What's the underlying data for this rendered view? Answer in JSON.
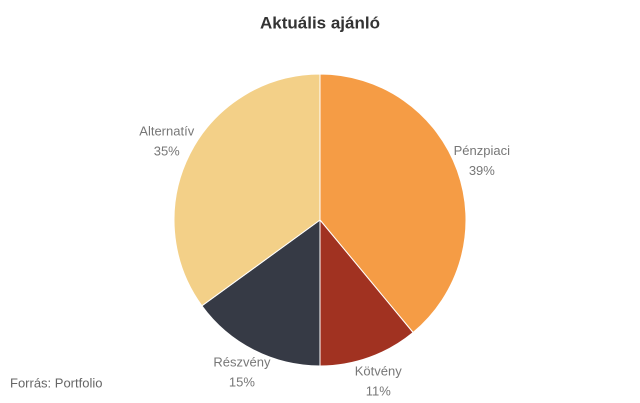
{
  "chart_data": {
    "type": "pie",
    "title": "Aktuális ajánló",
    "categories": [
      "Pénzpiaci",
      "Kötvény",
      "Részvény",
      "Alternatív"
    ],
    "values": [
      39,
      11,
      15,
      35
    ],
    "value_labels": [
      "39%",
      "11%",
      "15%",
      "35%"
    ],
    "colors": [
      "#f59c45",
      "#a13221",
      "#363a45",
      "#f3d088"
    ],
    "source": "Forrás: Portfolio"
  }
}
